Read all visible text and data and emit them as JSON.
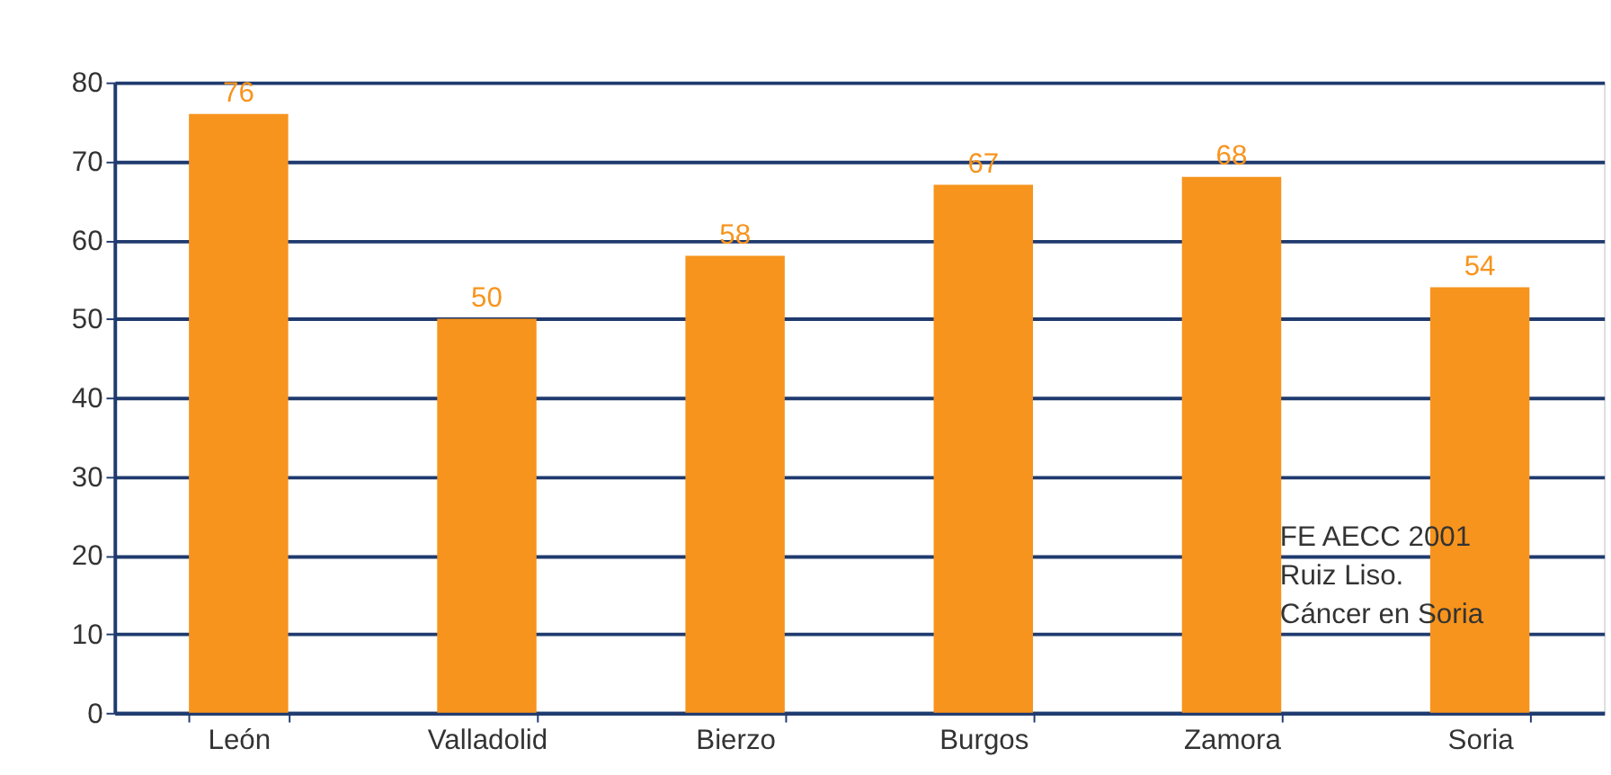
{
  "chart_data": {
    "type": "bar",
    "categories": [
      "León",
      "Valladolid",
      "Bierzo",
      "Burgos",
      "Zamora",
      "Soria"
    ],
    "values": [
      76,
      50,
      58,
      67,
      68,
      54
    ],
    "color": "#f7941d",
    "data_labels": true,
    "ylim": [
      0,
      80
    ],
    "yticks": [
      0,
      10,
      20,
      30,
      40,
      50,
      60,
      70,
      80
    ],
    "grid": "y",
    "annotations": [
      "FE AECC 2001",
      "Ruiz Liso.",
      "Cáncer en Soria"
    ]
  }
}
